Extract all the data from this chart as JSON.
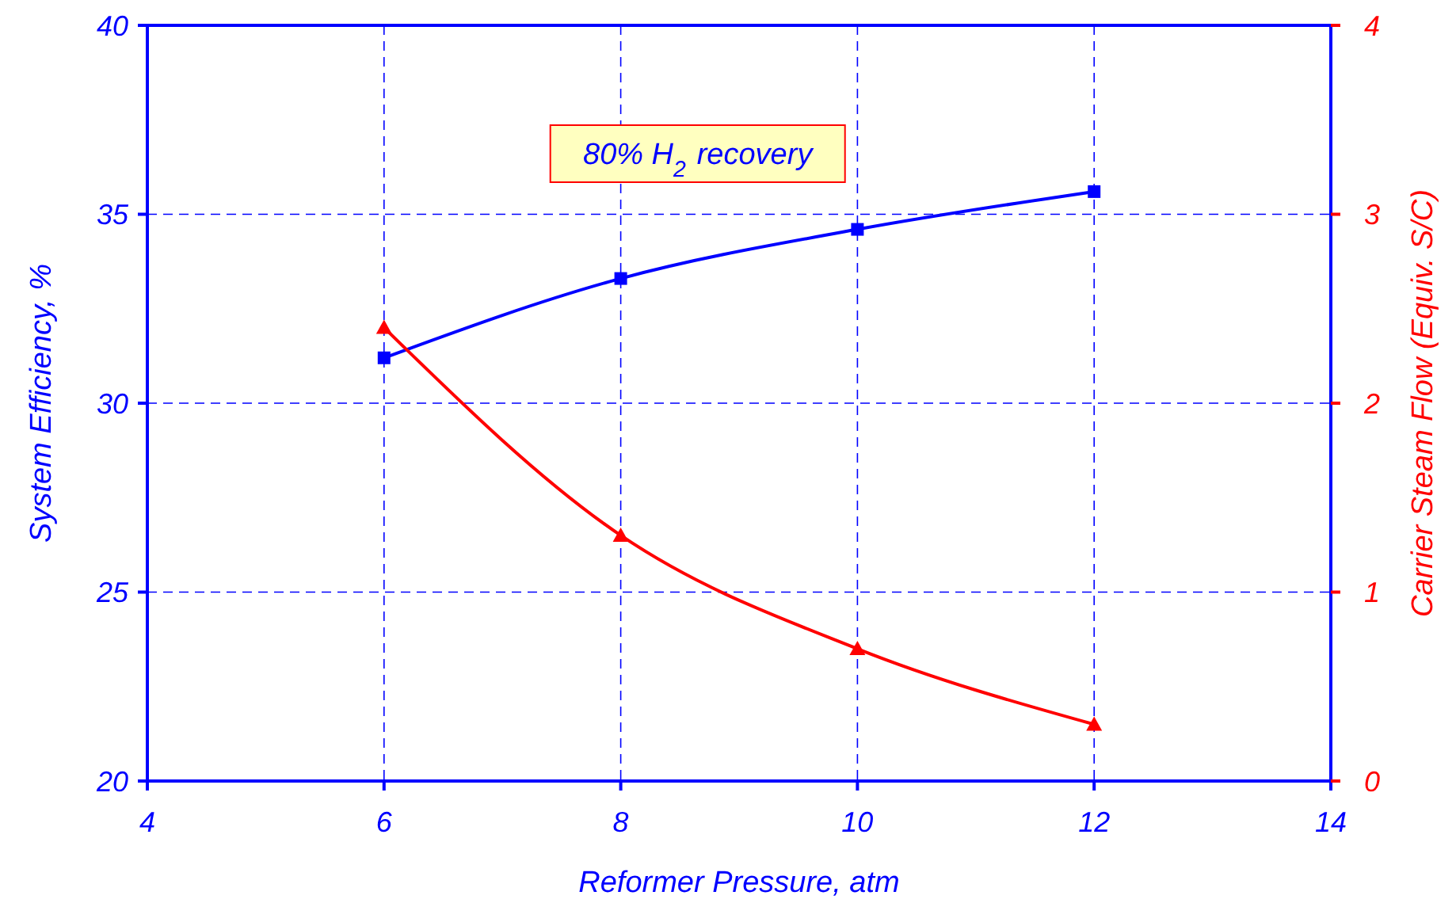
{
  "chart_data": {
    "type": "line",
    "xlabel": "Reformer Pressure, atm",
    "ylabel": "System Efficiency, %",
    "y2label": "Carrier Steam Flow (Equiv. S/C)",
    "x": [
      6,
      8,
      10,
      12
    ],
    "series": [
      {
        "color": "#0000ff",
        "marker": "square",
        "values": [
          31.2,
          33.3,
          34.6,
          35.6
        ]
      },
      {
        "color": "#ff0000",
        "marker": "triangle",
        "axis": "y2",
        "values": [
          2.4,
          1.3,
          0.7,
          0.3
        ]
      }
    ],
    "xlim": [
      4,
      14
    ],
    "xticks": [
      4,
      6,
      8,
      10,
      12,
      14
    ],
    "ylim": [
      20,
      40
    ],
    "yticks": [
      20,
      25,
      30,
      35,
      40
    ],
    "y2lim": [
      0,
      4
    ],
    "y2ticks": [
      0,
      1,
      2,
      3,
      4
    ],
    "grid": true,
    "line_style": "solid",
    "annotations": [
      "80% H$_{2}$ recovery"
    ]
  }
}
